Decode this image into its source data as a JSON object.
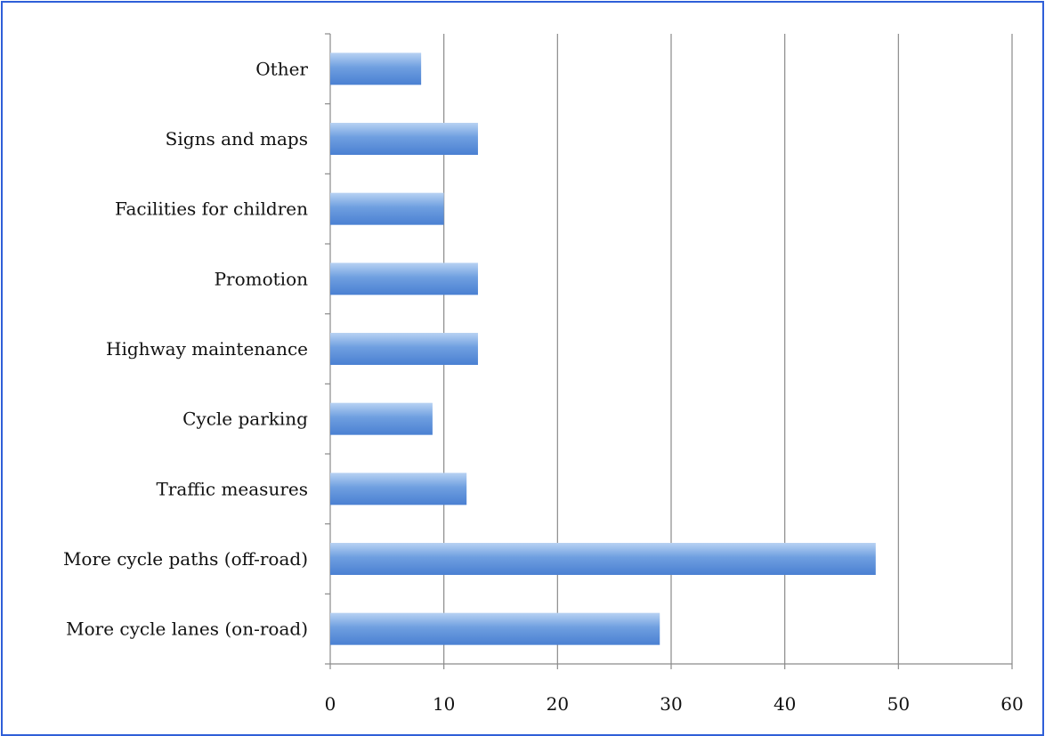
{
  "chart_data": {
    "type": "bar",
    "orientation": "horizontal",
    "categories": [
      "More cycle lanes (on-road)",
      "More cycle paths (off-road)",
      "Traffic measures",
      "Cycle parking",
      "Highway maintenance",
      "Promotion",
      "Facilities for children",
      "Signs and maps",
      "Other"
    ],
    "values": [
      29,
      48,
      12,
      9,
      13,
      13,
      10,
      13,
      8
    ],
    "xticks": [
      "0",
      "10",
      "20",
      "30",
      "40",
      "50",
      "60"
    ],
    "xlim": [
      0,
      60
    ],
    "grid": "vertical",
    "legend": "none",
    "title": "",
    "xlabel": "",
    "ylabel": "",
    "colors": {
      "bar_light": "#b8d2f3",
      "bar_mid": "#6f9fe0",
      "bar_dark": "#4a80d2",
      "grid": "#8a8a8a",
      "axis": "#8a8a8a",
      "frame": "#2f5fd8"
    }
  }
}
